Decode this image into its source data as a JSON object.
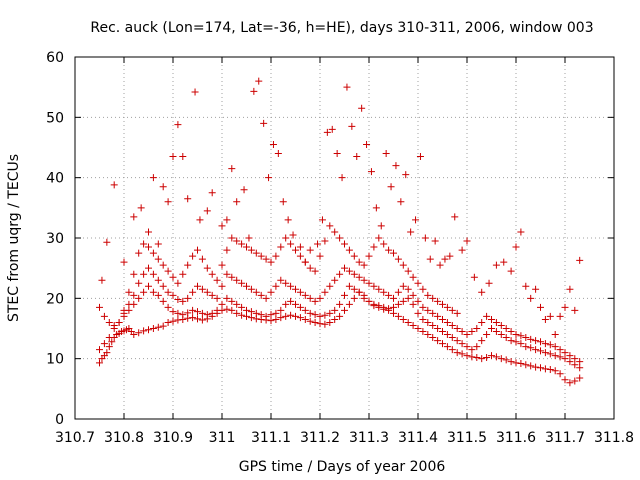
{
  "chart_data": {
    "type": "scatter",
    "title": "Rec. auck (Lon=174, Lat=-36, h=HE), days 310-311, 2006, window 003",
    "xlabel": "GPS time / Days of year 2006",
    "ylabel": "STEC from uqrg / TECUs",
    "xlim": [
      310.7,
      311.8
    ],
    "ylim": [
      0,
      60
    ],
    "x_ticks": [
      "310.7",
      "310.8",
      "310.9",
      "311",
      "311.1",
      "311.2",
      "311.3",
      "311.4",
      "311.5",
      "311.6",
      "311.7",
      "311.8"
    ],
    "y_ticks": [
      "0",
      "10",
      "20",
      "30",
      "40",
      "50",
      "60"
    ],
    "grid": true,
    "marker": "+",
    "color": "#cc0000",
    "series": [
      {
        "x": [
          310.75,
          310.755,
          310.76,
          310.765,
          310.77,
          310.775,
          310.78,
          310.785,
          310.79,
          310.795,
          310.8,
          310.805,
          310.81,
          310.815,
          310.82,
          310.83,
          310.84,
          310.85,
          310.86,
          310.87,
          310.88,
          310.89,
          310.9,
          310.91,
          310.92,
          310.93,
          310.94,
          310.95,
          310.96,
          310.97,
          310.98,
          310.99,
          311.0,
          311.01,
          311.02,
          311.03,
          311.04,
          311.05,
          311.06,
          311.07,
          311.08,
          311.09,
          311.1,
          311.11,
          311.12,
          311.13,
          311.14,
          311.15,
          311.16,
          311.17,
          311.18,
          311.19,
          311.2,
          311.21,
          311.22,
          311.23,
          311.24,
          311.25,
          311.26,
          311.27,
          311.28,
          311.29,
          311.3,
          311.31,
          311.32,
          311.33,
          311.34,
          311.35,
          311.36,
          311.37,
          311.38,
          311.39,
          311.4,
          311.41,
          311.42,
          311.43,
          311.44,
          311.45,
          311.46,
          311.47,
          311.48,
          311.49,
          311.5,
          311.51,
          311.52,
          311.53,
          311.54,
          311.55,
          311.56,
          311.57,
          311.58,
          311.59,
          311.6,
          311.61,
          311.62,
          311.63,
          311.64,
          311.65,
          311.66,
          311.67,
          311.68,
          311.69,
          311.7,
          311.71,
          311.72,
          311.73
        ],
        "y": [
          9.3,
          10.0,
          10.5,
          11.0,
          12.0,
          12.8,
          13.5,
          14.0,
          14.2,
          14.5,
          14.6,
          14.8,
          15.0,
          14.5,
          14.0,
          14.3,
          14.6,
          14.8,
          15.0,
          15.2,
          15.4,
          16.0,
          16.2,
          16.4,
          16.5,
          16.7,
          16.8,
          16.6,
          16.4,
          16.6,
          17.0,
          17.5,
          18.0,
          18.2,
          18.0,
          17.5,
          17.2,
          17.0,
          16.8,
          16.6,
          16.5,
          16.4,
          16.3,
          16.5,
          16.8,
          17.0,
          17.2,
          17.0,
          16.8,
          16.5,
          16.2,
          16.0,
          15.8,
          15.7,
          16.0,
          16.5,
          17.0,
          18.0,
          19.0,
          20.0,
          21.0,
          20.5,
          19.5,
          18.8,
          18.5,
          18.2,
          18.0,
          17.5,
          17.0,
          16.5,
          16.0,
          15.5,
          15.0,
          14.5,
          14.0,
          13.5,
          13.0,
          12.5,
          12.0,
          11.5,
          11.0,
          10.8,
          10.5,
          10.3,
          10.2,
          10.0,
          10.2,
          10.5,
          10.3,
          10.0,
          9.8,
          9.5,
          9.3,
          9.2,
          9.0,
          8.8,
          8.6,
          8.5,
          8.3,
          8.2,
          8.0,
          7.5,
          6.5,
          6.0,
          6.3,
          6.8
        ]
      },
      {
        "x": [
          310.75,
          310.76,
          310.77,
          310.78,
          310.79,
          310.8,
          310.81,
          310.82,
          310.83,
          310.84,
          310.85,
          310.86,
          310.87,
          310.88,
          310.89,
          310.9,
          310.91,
          310.92,
          310.93,
          310.94,
          310.95,
          310.96,
          310.97,
          310.98,
          310.99,
          311.0,
          311.01,
          311.02,
          311.03,
          311.04,
          311.05,
          311.06,
          311.07,
          311.08,
          311.09,
          311.1,
          311.11,
          311.12,
          311.13,
          311.14,
          311.15,
          311.16,
          311.17,
          311.18,
          311.19,
          311.2,
          311.21,
          311.22,
          311.23,
          311.24,
          311.25,
          311.26,
          311.27,
          311.28,
          311.29,
          311.3,
          311.31,
          311.32,
          311.33,
          311.34,
          311.35,
          311.36,
          311.37,
          311.38,
          311.39,
          311.4,
          311.41,
          311.42,
          311.43,
          311.44,
          311.45,
          311.46,
          311.47,
          311.48,
          311.49,
          311.5,
          311.51,
          311.52,
          311.53,
          311.54,
          311.55,
          311.56,
          311.57,
          311.58,
          311.59,
          311.6,
          311.61,
          311.62,
          311.63,
          311.64,
          311.65,
          311.66,
          311.67,
          311.68,
          311.69,
          311.7,
          311.71,
          311.72,
          311.73
        ],
        "y": [
          11.5,
          12.5,
          13.5,
          15.0,
          16.0,
          17.0,
          18.0,
          19.0,
          20.0,
          21.0,
          22.0,
          21.0,
          20.5,
          19.5,
          18.5,
          17.8,
          17.5,
          17.3,
          17.6,
          18.0,
          17.8,
          17.5,
          17.3,
          17.5,
          18.0,
          19.0,
          20.0,
          19.5,
          19.0,
          18.5,
          18.0,
          17.8,
          17.5,
          17.3,
          17.0,
          17.3,
          17.5,
          18.0,
          19.0,
          19.5,
          19.0,
          18.5,
          18.0,
          17.5,
          17.3,
          17.0,
          17.2,
          17.5,
          18.0,
          19.0,
          20.5,
          22.0,
          21.5,
          21.0,
          20.0,
          19.5,
          19.0,
          18.8,
          18.5,
          18.3,
          18.5,
          19.0,
          19.5,
          20.0,
          19.0,
          17.5,
          16.5,
          16.0,
          15.5,
          15.0,
          14.5,
          14.0,
          13.5,
          13.0,
          12.5,
          12.0,
          11.5,
          12.0,
          13.0,
          14.0,
          15.0,
          14.5,
          14.0,
          13.5,
          13.0,
          12.8,
          12.5,
          12.0,
          11.8,
          11.5,
          11.3,
          11.0,
          10.8,
          10.5,
          10.3,
          10.0,
          9.5,
          9.0,
          8.5
        ]
      },
      {
        "x": [
          310.75,
          310.76,
          310.77,
          310.78,
          310.79,
          310.8,
          310.81,
          310.82,
          310.83,
          310.84,
          310.85,
          310.86,
          310.87,
          310.88,
          310.89,
          310.9,
          310.91,
          310.92,
          310.93,
          310.94,
          310.95,
          310.96,
          310.97,
          310.98,
          310.99,
          311.0,
          311.01,
          311.02,
          311.03,
          311.04,
          311.05,
          311.06,
          311.07,
          311.08,
          311.09,
          311.1,
          311.11,
          311.12,
          311.13,
          311.14,
          311.15,
          311.16,
          311.17,
          311.18,
          311.19,
          311.2,
          311.21,
          311.22,
          311.23,
          311.24,
          311.25,
          311.26,
          311.27,
          311.28,
          311.29,
          311.3,
          311.31,
          311.32,
          311.33,
          311.34,
          311.35,
          311.36,
          311.37,
          311.38,
          311.39,
          311.4,
          311.41,
          311.42,
          311.43,
          311.44,
          311.45,
          311.46,
          311.47,
          311.48,
          311.49,
          311.5,
          311.51,
          311.52,
          311.53,
          311.54,
          311.55,
          311.56,
          311.57,
          311.58,
          311.59,
          311.6,
          311.61,
          311.62,
          311.63,
          311.64,
          311.65,
          311.66,
          311.67,
          311.68,
          311.69,
          311.7,
          311.71,
          311.72,
          311.73
        ],
        "y": [
          18.5,
          17.0,
          16.0,
          15.5,
          16.0,
          17.5,
          19.0,
          20.5,
          22.5,
          24.0,
          25.0,
          24.0,
          23.0,
          22.0,
          21.0,
          20.5,
          19.8,
          19.5,
          20.0,
          21.0,
          22.0,
          21.5,
          21.0,
          20.5,
          20.0,
          22.0,
          24.0,
          23.5,
          23.0,
          22.5,
          22.0,
          21.5,
          21.0,
          20.5,
          20.0,
          21.0,
          22.0,
          23.0,
          22.5,
          22.0,
          21.5,
          21.0,
          20.5,
          20.0,
          19.5,
          20.0,
          21.0,
          22.0,
          23.0,
          24.0,
          25.0,
          24.5,
          24.0,
          23.5,
          23.0,
          22.5,
          22.0,
          21.5,
          21.0,
          20.5,
          20.0,
          21.0,
          22.0,
          21.5,
          20.5,
          19.5,
          18.5,
          18.0,
          17.5,
          17.0,
          16.5,
          16.0,
          15.5,
          15.0,
          14.5,
          14.0,
          14.5,
          15.0,
          16.0,
          17.0,
          16.5,
          16.0,
          15.5,
          15.0,
          14.5,
          14.0,
          13.8,
          13.5,
          13.2,
          13.0,
          12.8,
          12.5,
          12.3,
          12.0,
          11.5,
          11.0,
          10.5,
          10.0,
          9.5
        ]
      },
      {
        "x": [
          310.755,
          310.765,
          310.78,
          310.8,
          310.82,
          310.835,
          310.85,
          310.86,
          310.87,
          310.88,
          310.89,
          310.9,
          310.91,
          310.92,
          310.93,
          310.945,
          310.955,
          310.97,
          310.98,
          311.0,
          311.01,
          311.02,
          311.03,
          311.045,
          311.055,
          311.065,
          311.075,
          311.085,
          311.095,
          311.105,
          311.115,
          311.125,
          311.135,
          311.145,
          311.16,
          311.17,
          311.18,
          311.195,
          311.205,
          311.215,
          311.225,
          311.235,
          311.245,
          311.255,
          311.265,
          311.275,
          311.285,
          311.295,
          311.305,
          311.315,
          311.325,
          311.335,
          311.345,
          311.355,
          311.365,
          311.375,
          311.385,
          311.395,
          311.405,
          311.415,
          311.425,
          311.435,
          311.445,
          311.455,
          311.465,
          311.475,
          311.49,
          311.5,
          311.515,
          311.53,
          311.545,
          311.56,
          311.575,
          311.59,
          311.6,
          311.61,
          311.62,
          311.63,
          311.64,
          311.65,
          311.66,
          311.67,
          311.68,
          311.69,
          311.7,
          311.71,
          311.72,
          311.73
        ],
        "y": [
          23.0,
          29.3,
          38.8,
          26.0,
          33.5,
          35.0,
          31.0,
          40.0,
          29.0,
          38.5,
          36.0,
          43.5,
          48.8,
          43.5,
          36.5,
          54.2,
          33.0,
          34.5,
          37.5,
          32.0,
          33.0,
          41.5,
          36.0,
          38.0,
          30.0,
          54.3,
          56.0,
          49.0,
          40.0,
          45.5,
          44.0,
          36.0,
          33.0,
          30.5,
          28.5,
          26.0,
          28.0,
          29.0,
          33.0,
          47.5,
          48.0,
          44.0,
          40.0,
          55.0,
          48.5,
          43.5,
          51.5,
          45.5,
          41.0,
          35.0,
          32.0,
          44.0,
          38.5,
          42.0,
          36.0,
          40.5,
          31.0,
          33.0,
          43.5,
          30.0,
          26.5,
          29.5,
          25.5,
          26.5,
          27.0,
          33.5,
          28.0,
          29.5,
          23.5,
          21.0,
          22.5,
          25.5,
          26.0,
          24.5,
          28.5,
          31.0,
          22.0,
          20.0,
          21.5,
          18.5,
          16.5,
          17.0,
          14.0,
          17.0,
          18.5,
          21.5,
          18.0,
          26.3
        ]
      },
      {
        "x": [
          310.8,
          310.81,
          310.82,
          310.83,
          310.84,
          310.85,
          310.86,
          310.87,
          310.88,
          310.89,
          310.9,
          310.91,
          310.92,
          310.93,
          310.94,
          310.95,
          310.96,
          310.97,
          310.98,
          310.99,
          311.0,
          311.01,
          311.02,
          311.03,
          311.04,
          311.05,
          311.06,
          311.07,
          311.08,
          311.09,
          311.1,
          311.11,
          311.12,
          311.13,
          311.14,
          311.15,
          311.16,
          311.17,
          311.18,
          311.19,
          311.2,
          311.21,
          311.22,
          311.23,
          311.24,
          311.25,
          311.26,
          311.27,
          311.28,
          311.29,
          311.3,
          311.31,
          311.32,
          311.33,
          311.34,
          311.35,
          311.36,
          311.37,
          311.38,
          311.39,
          311.4,
          311.41,
          311.42,
          311.43,
          311.44,
          311.45,
          311.46,
          311.47,
          311.48
        ],
        "y": [
          18.0,
          21.0,
          24.0,
          27.5,
          29.0,
          28.5,
          27.5,
          26.5,
          25.5,
          24.5,
          23.5,
          22.5,
          24.0,
          25.5,
          27.0,
          28.0,
          26.5,
          25.0,
          24.0,
          23.0,
          25.5,
          28.0,
          30.0,
          29.5,
          29.0,
          28.5,
          28.0,
          27.5,
          27.0,
          26.5,
          26.0,
          27.0,
          28.5,
          30.0,
          29.0,
          28.0,
          27.0,
          26.0,
          25.0,
          24.5,
          27.0,
          29.5,
          32.0,
          31.0,
          30.0,
          29.0,
          28.0,
          27.0,
          26.0,
          25.5,
          27.0,
          28.5,
          30.0,
          29.0,
          28.0,
          27.5,
          26.5,
          25.5,
          24.5,
          23.5,
          22.5,
          21.5,
          20.5,
          20.0,
          19.5,
          19.0,
          18.5,
          18.0,
          17.5
        ]
      }
    ]
  }
}
